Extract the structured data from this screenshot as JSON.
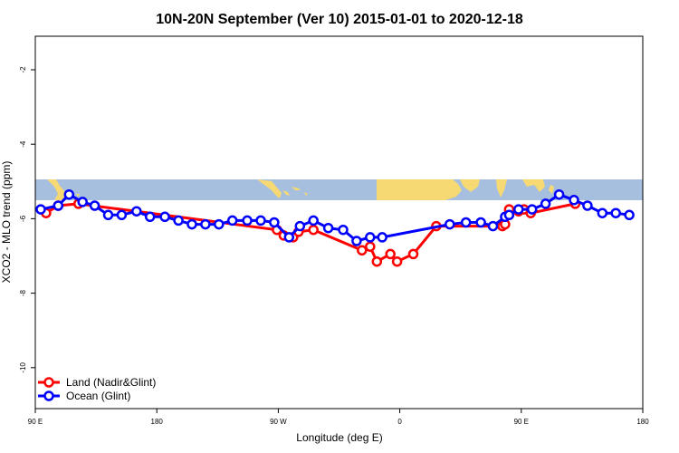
{
  "chart_data": {
    "type": "line",
    "title": "10N-20N September (Ver 10)   2015-01-01 to 2020-12-18",
    "xlabel": "Longitude (deg E)",
    "ylabel": "XCO2 - MLO trend (ppm)",
    "x_axis": {
      "range": [
        90,
        540
      ],
      "ticks": [
        {
          "value": 90,
          "label": "90 E"
        },
        {
          "value": 180,
          "label": "180"
        },
        {
          "value": 270,
          "label": "90 W"
        },
        {
          "value": 360,
          "label": "0"
        },
        {
          "value": 450,
          "label": "90 E"
        },
        {
          "value": 540,
          "label": "180"
        }
      ]
    },
    "y_axis": {
      "range": [
        -11.1,
        -1.1
      ],
      "ticks": [
        {
          "value": -2,
          "label": "-2"
        },
        {
          "value": -4,
          "label": "-4"
        },
        {
          "value": -6,
          "label": "-6"
        },
        {
          "value": -8,
          "label": "-8"
        },
        {
          "value": -10,
          "label": "-10"
        }
      ]
    },
    "map_strip": {
      "y_top": -4.95,
      "y_bottom": -5.5,
      "ocean_color": "#a7bfdf",
      "land_color": "#f6d972"
    },
    "legend_position": "bottom-left",
    "series": [
      {
        "name": "Land (Nadir&Glint)",
        "color": "#ff0000",
        "x": [
          98,
          107,
          122,
          269,
          274,
          281,
          285,
          296,
          332,
          338,
          343,
          353,
          358,
          370,
          387,
          436,
          438,
          441,
          448,
          452,
          457,
          490
        ],
        "y": [
          -5.85,
          -5.65,
          -5.6,
          -6.3,
          -6.45,
          -6.5,
          -6.35,
          -6.3,
          -6.85,
          -6.75,
          -7.15,
          -6.95,
          -7.15,
          -6.95,
          -6.2,
          -6.2,
          -6.15,
          -5.75,
          -5.8,
          -5.75,
          -5.85,
          -5.6
        ]
      },
      {
        "name": "Ocean (Glint)",
        "color": "#0000ff",
        "x": [
          94,
          107,
          115,
          125,
          134,
          144,
          154,
          165,
          175,
          186,
          196,
          206,
          216,
          226,
          236,
          247,
          257,
          267,
          278,
          286,
          296,
          307,
          318,
          328,
          338,
          347,
          397,
          409,
          420,
          429,
          438,
          441,
          448,
          458,
          468,
          478,
          489,
          499,
          510,
          520,
          530
        ],
        "y": [
          -5.75,
          -5.65,
          -5.35,
          -5.55,
          -5.65,
          -5.9,
          -5.9,
          -5.8,
          -5.95,
          -5.95,
          -6.05,
          -6.15,
          -6.15,
          -6.15,
          -6.05,
          -6.05,
          -6.05,
          -6.1,
          -6.5,
          -6.2,
          -6.05,
          -6.25,
          -6.3,
          -6.6,
          -6.5,
          -6.5,
          -6.15,
          -6.1,
          -6.1,
          -6.2,
          -5.95,
          -5.9,
          -5.75,
          -5.75,
          -5.6,
          -5.35,
          -5.5,
          -5.65,
          -5.85,
          -5.85,
          -5.9
        ]
      }
    ]
  }
}
